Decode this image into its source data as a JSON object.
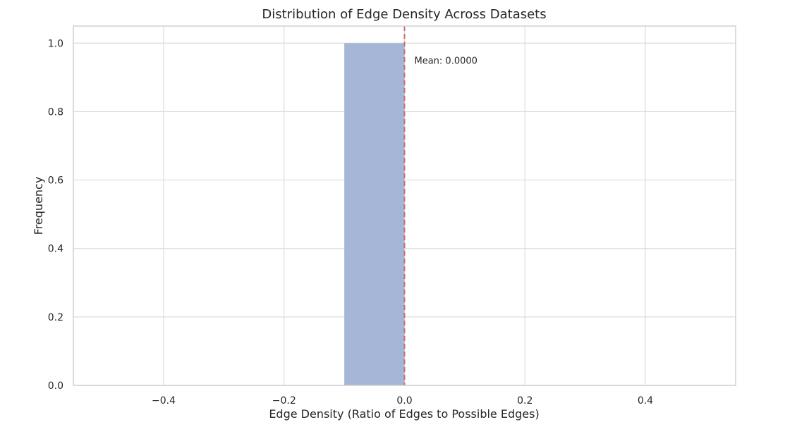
{
  "chart_data": {
    "type": "bar",
    "title": "Distribution of Edge Density Across Datasets",
    "xlabel": "Edge Density (Ratio of Edges to Possible Edges)",
    "ylabel": "Frequency",
    "xlim": [
      -0.55,
      0.55
    ],
    "ylim": [
      0,
      1.05
    ],
    "xticks": [
      -0.4,
      -0.2,
      0.0,
      0.2,
      0.4
    ],
    "xtick_labels": [
      "−0.4",
      "−0.2",
      "0.0",
      "0.2",
      "0.4"
    ],
    "yticks": [
      0.0,
      0.2,
      0.4,
      0.6,
      0.8,
      1.0
    ],
    "ytick_labels": [
      "0.0",
      "0.2",
      "0.4",
      "0.6",
      "0.8",
      "1.0"
    ],
    "bins": [
      {
        "x0": -0.1,
        "x1": 0.0,
        "value": 1.0
      }
    ],
    "bar_color": "#a5b6d7",
    "mean_line": {
      "x": 0.0,
      "label": "Mean: 0.0000",
      "color": "#d16b6b"
    },
    "grid": true,
    "legend": "none"
  }
}
